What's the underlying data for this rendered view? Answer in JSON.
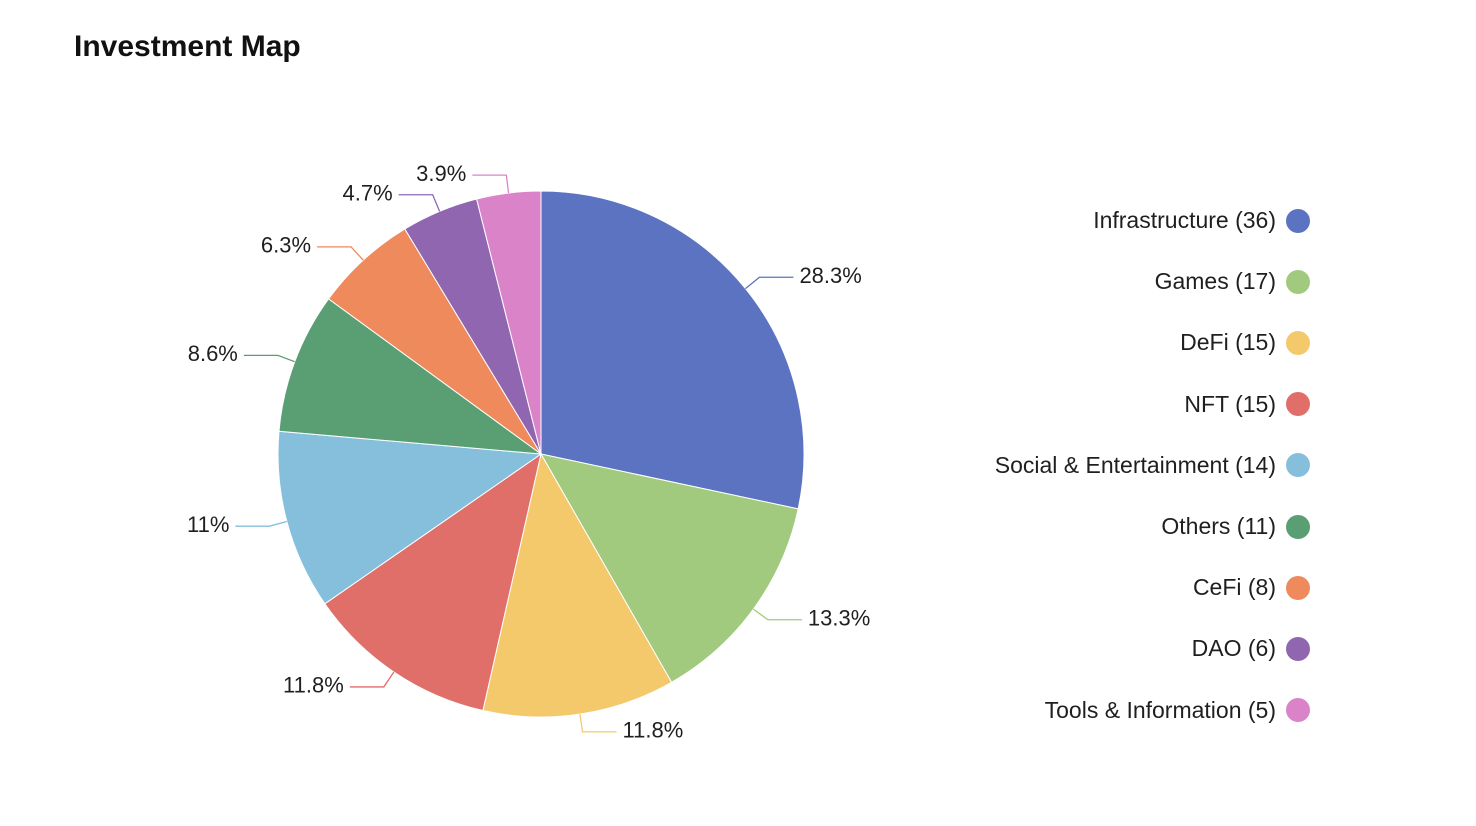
{
  "page": {
    "title": "Investment Map"
  },
  "chart_data": {
    "type": "pie",
    "title": "Investment Map",
    "legend_position": "right",
    "slices": [
      {
        "name": "Infrastructure",
        "count": 36,
        "percent": 28.3,
        "label": "28.3%",
        "legend_label": "Infrastructure (36)",
        "color": "#5B73C0"
      },
      {
        "name": "Games",
        "count": 17,
        "percent": 13.3,
        "label": "13.3%",
        "legend_label": "Games (17)",
        "color": "#A1CA7E"
      },
      {
        "name": "DeFi",
        "count": 15,
        "percent": 11.8,
        "label": "11.8%",
        "legend_label": "DeFi (15)",
        "color": "#F3C96C"
      },
      {
        "name": "NFT",
        "count": 15,
        "percent": 11.8,
        "label": "11.8%",
        "legend_label": "NFT (15)",
        "color": "#E06F69"
      },
      {
        "name": "Social & Entertainment",
        "count": 14,
        "percent": 11,
        "label": "11%",
        "legend_label": "Social & Entertainment (14)",
        "color": "#86BFDC"
      },
      {
        "name": "Others",
        "count": 11,
        "percent": 8.6,
        "label": "8.6%",
        "legend_label": "Others (11)",
        "color": "#5A9E73"
      },
      {
        "name": "CeFi",
        "count": 8,
        "percent": 6.3,
        "label": "6.3%",
        "legend_label": "CeFi (8)",
        "color": "#EE8A5B"
      },
      {
        "name": "DAO",
        "count": 6,
        "percent": 4.7,
        "label": "4.7%",
        "legend_label": "DAO (6)",
        "color": "#9066B0"
      },
      {
        "name": "Tools & Information",
        "count": 5,
        "percent": 3.9,
        "label": "3.9%",
        "legend_label": "Tools & Information (5)",
        "color": "#DB83C8"
      }
    ]
  }
}
